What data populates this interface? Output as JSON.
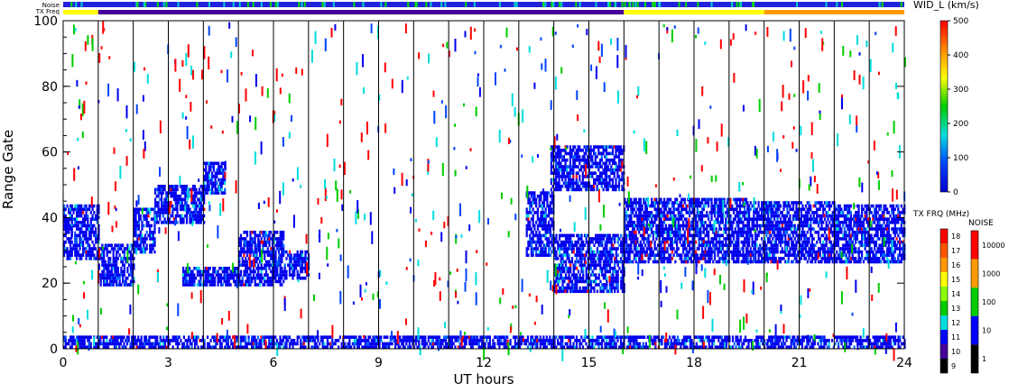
{
  "chart_data": {
    "type": "scatter",
    "ylabel": "Range Gate",
    "xlabel": "UT hours",
    "xlim": [
      0,
      24
    ],
    "ylim": [
      0,
      100
    ],
    "xticks": [
      0,
      3,
      6,
      9,
      12,
      15,
      18,
      21,
      24
    ],
    "yticks": [
      0,
      20,
      40,
      60,
      80,
      100
    ],
    "xtick_labels": [
      "0",
      "3",
      "6",
      "9",
      "12",
      "15",
      "18",
      "21",
      "24"
    ],
    "ytick_labels": [
      "0",
      "20",
      "40",
      "60",
      "80",
      "100"
    ],
    "vertical_lines_ut": [
      1,
      2,
      3,
      4,
      5,
      6,
      7,
      8,
      9,
      10,
      11,
      12,
      13,
      14,
      15,
      16,
      17,
      18,
      19,
      20,
      21,
      22,
      23
    ],
    "status_bars": {
      "noise_label": "Noise",
      "txfreq_label": "TX Freq",
      "noise_color": "#2222dd",
      "txfreq_segments": [
        {
          "start": 0,
          "end": 1,
          "color": "#ffff00"
        },
        {
          "start": 1,
          "end": 16,
          "color": "#440099"
        },
        {
          "start": 16,
          "end": 20,
          "color": "#ffff00"
        },
        {
          "start": 20,
          "end": 24,
          "color": "#ff9900"
        }
      ]
    },
    "echo_bands": [
      {
        "start_ut": 0.0,
        "end_ut": 1.0,
        "gate_low": 27,
        "gate_high": 44
      },
      {
        "start_ut": 1.0,
        "end_ut": 2.0,
        "gate_low": 19,
        "gate_high": 32
      },
      {
        "start_ut": 2.0,
        "end_ut": 2.6,
        "gate_low": 29,
        "gate_high": 43
      },
      {
        "start_ut": 2.6,
        "end_ut": 4.0,
        "gate_low": 38,
        "gate_high": 50
      },
      {
        "start_ut": 4.0,
        "end_ut": 4.6,
        "gate_low": 47,
        "gate_high": 57
      },
      {
        "start_ut": 3.4,
        "end_ut": 5.0,
        "gate_low": 19,
        "gate_high": 25
      },
      {
        "start_ut": 5.0,
        "end_ut": 6.3,
        "gate_low": 19,
        "gate_high": 36
      },
      {
        "start_ut": 6.3,
        "end_ut": 7.0,
        "gate_low": 21,
        "gate_high": 30
      },
      {
        "start_ut": 13.2,
        "end_ut": 14.0,
        "gate_low": 28,
        "gate_high": 48
      },
      {
        "start_ut": 14.0,
        "end_ut": 16.0,
        "gate_low": 17,
        "gate_high": 35
      },
      {
        "start_ut": 13.9,
        "end_ut": 16.0,
        "gate_low": 48,
        "gate_high": 62
      },
      {
        "start_ut": 16.0,
        "end_ut": 19.5,
        "gate_low": 26,
        "gate_high": 46
      },
      {
        "start_ut": 19.5,
        "end_ut": 22.0,
        "gate_low": 26,
        "gate_high": 45
      },
      {
        "start_ut": 22.0,
        "end_ut": 24.0,
        "gate_low": 26,
        "gate_high": 44
      },
      {
        "start_ut": 0.0,
        "end_ut": 24.0,
        "gate_low": 0,
        "gate_high": 4
      }
    ],
    "colorbars": [
      {
        "title": "WID_L (km/s)",
        "ticks": [
          "500",
          "400",
          "300",
          "200",
          "100",
          "0"
        ],
        "colors": [
          "#ff0000",
          "#ff8800",
          "#ffff00",
          "#00cc00",
          "#00dddd",
          "#0044ff",
          "#0000cc"
        ]
      },
      {
        "title": "TX FRQ (MHz)",
        "ticks": [
          "18",
          "17",
          "16",
          "15",
          "14",
          "13",
          "12",
          "11",
          "10",
          "9"
        ],
        "colors": [
          "#ff0000",
          "#ff5500",
          "#ff9900",
          "#ffff00",
          "#88ff00",
          "#00cc00",
          "#00dddd",
          "#0000ff",
          "#440099",
          "#000000"
        ]
      },
      {
        "title": "NOISE",
        "ticks": [
          "10000",
          "1000",
          "100",
          "10",
          "1"
        ],
        "colors": [
          "#ff0000",
          "#ff9900",
          "#00cc00",
          "#0000ff",
          "#000000"
        ]
      }
    ]
  }
}
